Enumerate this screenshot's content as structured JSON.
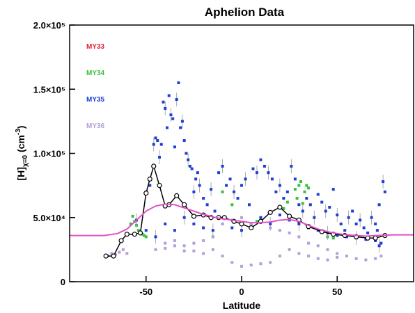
{
  "chart_data": {
    "type": "scatter",
    "title": "Aphelion Data",
    "xlabel": "Latitude",
    "ylabel": "[H]χ=0 (cm⁻³)",
    "ylabel_parts": {
      "base": "[H]",
      "sub": "χ=0",
      "unit": " (cm",
      "sup": "-3",
      "close": ")"
    },
    "xlim": [
      -90,
      90
    ],
    "ylim": [
      0,
      200000
    ],
    "x_ticks": [
      {
        "value": -50,
        "label": "-50"
      },
      {
        "value": 0,
        "label": "0"
      },
      {
        "value": 50,
        "label": "50"
      }
    ],
    "y_ticks": [
      {
        "value": 0,
        "label": "0"
      },
      {
        "value": 50000,
        "label": "5.0×10⁴"
      },
      {
        "value": 100000,
        "label": "1.0×10⁵"
      },
      {
        "value": 150000,
        "label": "1.5×10⁵"
      },
      {
        "value": 200000,
        "label": "2.0×10⁵"
      }
    ],
    "legend_position": "top-left",
    "series": [
      {
        "name": "MY33",
        "color": "#e8203a",
        "points": []
      },
      {
        "name": "MY34",
        "color": "#38c13a",
        "points": [
          [
            -56,
            47000
          ],
          [
            -55,
            44000
          ],
          [
            -54,
            40000
          ],
          [
            -53,
            38000
          ],
          [
            -52,
            37000
          ],
          [
            -51,
            36000
          ],
          [
            -50,
            35000
          ],
          [
            -57,
            51000
          ],
          [
            -58,
            45000
          ],
          [
            -10,
            70000
          ],
          [
            -5,
            60000
          ],
          [
            8,
            47000
          ],
          [
            28,
            72000
          ],
          [
            29,
            65000
          ],
          [
            30,
            75000
          ],
          [
            31,
            78000
          ],
          [
            32,
            61000
          ],
          [
            33,
            70000
          ],
          [
            34,
            75000
          ],
          [
            35,
            73000
          ],
          [
            22,
            57000
          ],
          [
            24,
            62000
          ],
          [
            -15,
            35000
          ],
          [
            45,
            35000
          ],
          [
            48,
            34000
          ]
        ]
      },
      {
        "name": "MY35",
        "color": "#1d3fd6",
        "points": [
          [
            -55,
            48000
          ],
          [
            -50,
            70000
          ],
          [
            -48,
            75000
          ],
          [
            -46,
            107000
          ],
          [
            -45,
            112000
          ],
          [
            -44,
            110000
          ],
          [
            -43,
            97000
          ],
          [
            -42,
            107000
          ],
          [
            -41,
            140000
          ],
          [
            -40,
            135000
          ],
          [
            -39,
            120000
          ],
          [
            -38,
            145000
          ],
          [
            -37,
            130000
          ],
          [
            -36,
            127000
          ],
          [
            -35,
            105000
          ],
          [
            -34,
            142000
          ],
          [
            -33,
            155000
          ],
          [
            -32,
            120000
          ],
          [
            -31,
            125000
          ],
          [
            -30,
            110000
          ],
          [
            -29,
            100000
          ],
          [
            -28,
            95000
          ],
          [
            -27,
            90000
          ],
          [
            -26,
            88000
          ],
          [
            -25,
            70000
          ],
          [
            -24,
            80000
          ],
          [
            -23,
            85000
          ],
          [
            -22,
            75000
          ],
          [
            -20,
            65000
          ],
          [
            -18,
            60000
          ],
          [
            -16,
            72000
          ],
          [
            -14,
            55000
          ],
          [
            -12,
            85000
          ],
          [
            -10,
            90000
          ],
          [
            -8,
            75000
          ],
          [
            -6,
            80000
          ],
          [
            -4,
            70000
          ],
          [
            -2,
            65000
          ],
          [
            0,
            75000
          ],
          [
            2,
            80000
          ],
          [
            4,
            60000
          ],
          [
            6,
            88000
          ],
          [
            8,
            85000
          ],
          [
            10,
            95000
          ],
          [
            12,
            90000
          ],
          [
            14,
            85000
          ],
          [
            16,
            80000
          ],
          [
            18,
            70000
          ],
          [
            20,
            75000
          ],
          [
            22,
            65000
          ],
          [
            24,
            70000
          ],
          [
            26,
            90000
          ],
          [
            28,
            80000
          ],
          [
            30,
            60000
          ],
          [
            32,
            55000
          ],
          [
            34,
            65000
          ],
          [
            36,
            60000
          ],
          [
            38,
            50000
          ],
          [
            40,
            68000
          ],
          [
            42,
            62000
          ],
          [
            44,
            55000
          ],
          [
            46,
            58000
          ],
          [
            48,
            72000
          ],
          [
            50,
            52000
          ],
          [
            52,
            45000
          ],
          [
            54,
            40000
          ],
          [
            56,
            50000
          ],
          [
            58,
            55000
          ],
          [
            60,
            45000
          ],
          [
            62,
            48000
          ],
          [
            64,
            42000
          ],
          [
            66,
            38000
          ],
          [
            68,
            50000
          ],
          [
            70,
            45000
          ],
          [
            72,
            60000
          ],
          [
            74,
            78000
          ],
          [
            75,
            70000
          ],
          [
            -50,
            40000
          ],
          [
            -45,
            35000
          ],
          [
            -40,
            45000
          ],
          [
            -35,
            40000
          ],
          [
            -30,
            50000
          ],
          [
            -25,
            45000
          ],
          [
            -20,
            42000
          ],
          [
            -15,
            40000
          ],
          [
            -10,
            45000
          ],
          [
            -5,
            42000
          ],
          [
            0,
            40000
          ],
          [
            5,
            45000
          ],
          [
            10,
            50000
          ],
          [
            15,
            45000
          ],
          [
            20,
            52000
          ],
          [
            25,
            48000
          ],
          [
            30,
            45000
          ],
          [
            35,
            42000
          ],
          [
            40,
            40000
          ],
          [
            45,
            38000
          ],
          [
            50,
            36000
          ],
          [
            55,
            35000
          ],
          [
            60,
            34000
          ],
          [
            65,
            33000
          ],
          [
            70,
            32000
          ],
          [
            72,
            28000
          ],
          [
            73,
            30000
          ],
          [
            71,
            40000
          ]
        ]
      },
      {
        "name": "MY36",
        "color": "#b49fd8",
        "points": [
          [
            -70,
            20000
          ],
          [
            -68,
            22000
          ],
          [
            -66,
            21000
          ],
          [
            -64,
            23000
          ],
          [
            -62,
            25000
          ],
          [
            -60,
            22000
          ],
          [
            -45,
            25000
          ],
          [
            -40,
            30000
          ],
          [
            -35,
            28000
          ],
          [
            -30,
            24000
          ],
          [
            -25,
            30000
          ],
          [
            -20,
            32000
          ],
          [
            -15,
            35000
          ],
          [
            -10,
            45000
          ],
          [
            -5,
            48000
          ],
          [
            0,
            50000
          ],
          [
            5,
            45000
          ],
          [
            10,
            48000
          ],
          [
            15,
            42000
          ],
          [
            20,
            40000
          ],
          [
            25,
            38000
          ],
          [
            30,
            35000
          ],
          [
            35,
            30000
          ],
          [
            40,
            28000
          ],
          [
            45,
            25000
          ],
          [
            50,
            22000
          ],
          [
            55,
            20000
          ],
          [
            60,
            18000
          ],
          [
            65,
            17000
          ],
          [
            70,
            18000
          ],
          [
            73,
            20000
          ],
          [
            -5,
            15000
          ],
          [
            0,
            12000
          ],
          [
            5,
            13000
          ],
          [
            10,
            14000
          ],
          [
            15,
            15000
          ],
          [
            20,
            20000
          ],
          [
            25,
            25000
          ],
          [
            30,
            22000
          ],
          [
            35,
            20000
          ],
          [
            40,
            18000
          ],
          [
            45,
            17000
          ],
          [
            50,
            19000
          ],
          [
            -20,
            22000
          ],
          [
            -15,
            25000
          ],
          [
            -10,
            20000
          ],
          [
            -25,
            24000
          ],
          [
            -30,
            28000
          ],
          [
            -35,
            32000
          ],
          [
            -40,
            26000
          ]
        ]
      },
      {
        "name": "",
        "color": "#000000",
        "points": [
          [
            -71,
            20000
          ],
          [
            -67,
            20000
          ],
          [
            -63,
            32000
          ],
          [
            -60,
            37000
          ],
          [
            -56,
            37000
          ],
          [
            -53,
            38000
          ],
          [
            -50,
            69000
          ],
          [
            -48,
            80000
          ],
          [
            -46,
            90000
          ],
          [
            -43,
            75000
          ],
          [
            -40,
            59000
          ],
          [
            -38,
            60000
          ],
          [
            -34,
            67000
          ],
          [
            -30,
            60000
          ],
          [
            -25,
            51000
          ],
          [
            -20,
            52000
          ],
          [
            -16,
            50000
          ],
          [
            -12,
            50000
          ],
          [
            -9,
            50000
          ],
          [
            -4,
            47000
          ],
          [
            0,
            45000
          ],
          [
            5,
            42000
          ],
          [
            10,
            47000
          ],
          [
            15,
            54000
          ],
          [
            20,
            58000
          ],
          [
            25,
            51000
          ],
          [
            30,
            48000
          ],
          [
            35,
            43000
          ],
          [
            42,
            39000
          ],
          [
            48,
            37000
          ],
          [
            54,
            36000
          ],
          [
            60,
            35000
          ],
          [
            66,
            34000
          ],
          [
            70,
            34000
          ],
          [
            75,
            36000
          ]
        ]
      },
      {
        "name": "",
        "color": "#e050c8",
        "points": [
          [
            -90,
            36000
          ],
          [
            -80,
            36000
          ],
          [
            -72,
            36000
          ],
          [
            -65,
            37500
          ],
          [
            -60,
            41000
          ],
          [
            -55,
            48000
          ],
          [
            -50,
            55000
          ],
          [
            -45,
            59000
          ],
          [
            -40,
            60500
          ],
          [
            -35,
            60000
          ],
          [
            -30,
            57500
          ],
          [
            -25,
            55000
          ],
          [
            -20,
            52500
          ],
          [
            -15,
            50500
          ],
          [
            -10,
            49000
          ],
          [
            -5,
            48000
          ],
          [
            0,
            47000
          ],
          [
            5,
            46000
          ],
          [
            10,
            46000
          ],
          [
            15,
            46500
          ],
          [
            20,
            48000
          ],
          [
            25,
            48500
          ],
          [
            30,
            47000
          ],
          [
            35,
            44000
          ],
          [
            40,
            41000
          ],
          [
            45,
            39000
          ],
          [
            50,
            37500
          ],
          [
            55,
            36500
          ],
          [
            60,
            36000
          ],
          [
            65,
            35500
          ],
          [
            70,
            36000
          ],
          [
            80,
            36500
          ],
          [
            90,
            36500
          ]
        ]
      }
    ]
  }
}
